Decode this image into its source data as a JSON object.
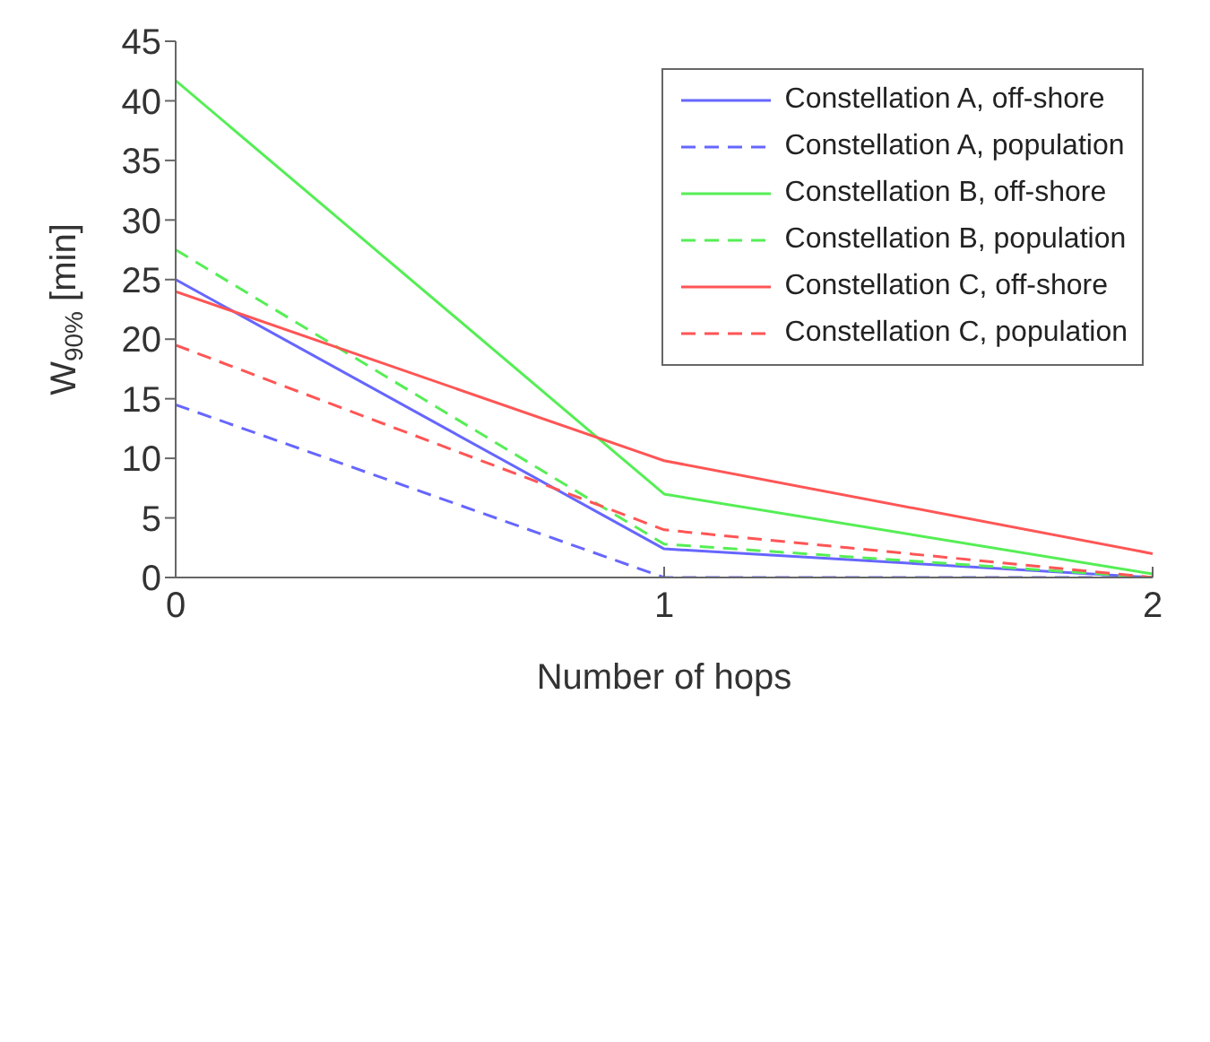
{
  "chart_data": {
    "type": "line",
    "xlabel": "Number of hops",
    "ylabel": "W$_{90%}$ [min]",
    "x": [
      0,
      1,
      2
    ],
    "xlim": [
      0,
      2
    ],
    "xticks": [
      0,
      1,
      2
    ],
    "ylim": [
      0,
      45
    ],
    "yticks": [
      0,
      5,
      10,
      15,
      20,
      25,
      30,
      35,
      40,
      45
    ],
    "grid": false,
    "legend": "top right",
    "marker": "none",
    "series": [
      {
        "name": "Constellation A, off-shore",
        "color": "#6666ff",
        "line_style": "solid",
        "values": [
          25,
          2.4,
          0
        ]
      },
      {
        "name": "Constellation A, population",
        "color": "#6666ff",
        "line_style": "dashed",
        "values": [
          14.5,
          0,
          0
        ]
      },
      {
        "name": "Constellation B, off-shore",
        "color": "#55ee55",
        "line_style": "solid",
        "values": [
          41.7,
          7,
          0.3
        ]
      },
      {
        "name": "Constellation B, population",
        "color": "#55ee55",
        "line_style": "dashed",
        "values": [
          27.5,
          2.8,
          0
        ]
      },
      {
        "name": "Constellation C, off-shore",
        "color": "#ff5555",
        "line_style": "solid",
        "values": [
          24,
          9.8,
          2
        ]
      },
      {
        "name": "Constellation C, population",
        "color": "#ff5555",
        "line_style": "dashed",
        "values": [
          19.5,
          4,
          0
        ]
      }
    ]
  }
}
